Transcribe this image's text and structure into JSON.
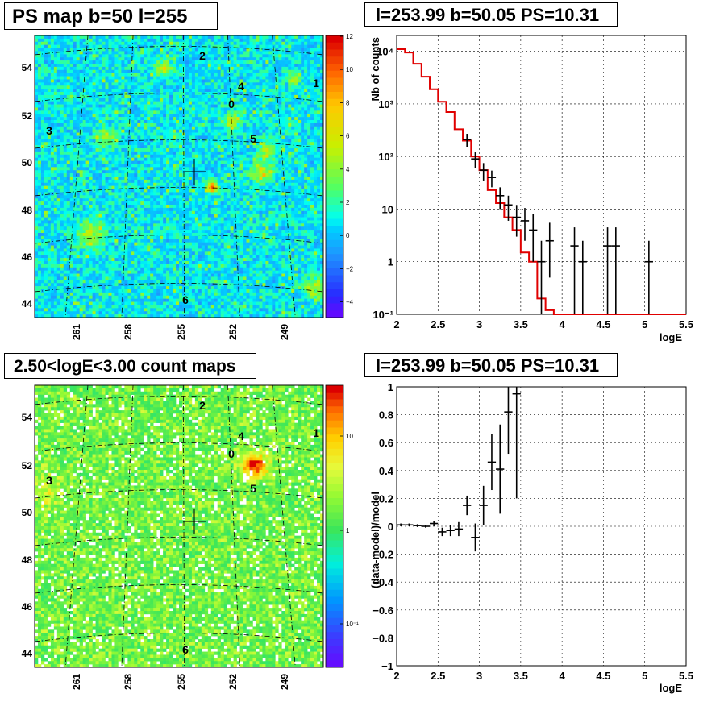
{
  "titles": {
    "tl": "PS map b=50 l=255",
    "tr": "l=253.99 b=50.05 PS=10.31",
    "bl": "2.50<logE<3.00 count maps",
    "br": "l=253.99 b=50.05 PS=10.31"
  },
  "colors": {
    "data": "#000000",
    "model": "#e00000",
    "grid": "#000000"
  },
  "chart_data": [
    {
      "panel": "ps-map",
      "type": "heatmap",
      "title": "PS map b=50 l=255",
      "x_ticks": [
        "261",
        "258",
        "255",
        "252",
        "249"
      ],
      "y_ticks": [
        "54",
        "52",
        "50",
        "48",
        "46",
        "44"
      ],
      "colorbar_ticks": [
        "12",
        "10",
        "8",
        "6",
        "4",
        "2",
        "0",
        "−2",
        "−4"
      ],
      "colorbar_range": [
        -5,
        12
      ],
      "source_labels": [
        "0",
        "1",
        "2",
        "3",
        "4",
        "5",
        "6"
      ],
      "center_marker": {
        "l": 253.99,
        "b": 50.05
      }
    },
    {
      "panel": "spectrum",
      "type": "line",
      "title": "l=253.99 b=50.05 PS=10.31",
      "xlabel": "logE",
      "ylabel": "Nb of counts",
      "xlim": [
        2,
        5.5
      ],
      "ylim": [
        0.1,
        20000
      ],
      "yscale": "log",
      "x_ticks": [
        "2",
        "2.5",
        "3",
        "3.5",
        "4",
        "4.5",
        "5",
        "5.5"
      ],
      "y_ticks": [
        "10⁴",
        "10³",
        "10²",
        "10",
        "1",
        "10⁻¹"
      ],
      "grid": true,
      "series": [
        {
          "kind": "data-points",
          "x": [
            2.85,
            2.95,
            3.05,
            3.15,
            3.25,
            3.35,
            3.45,
            3.55,
            3.65,
            3.75,
            3.85,
            4.15,
            4.25,
            4.55,
            4.65,
            5.05
          ],
          "y": [
            210,
            90,
            55,
            40,
            18,
            12,
            7,
            6,
            4,
            1,
            2.5,
            2,
            1,
            2,
            2,
            1
          ],
          "err_lo": [
            60,
            30,
            20,
            14,
            8,
            6,
            4,
            3.5,
            3,
            0.9,
            2,
            1.9,
            0.9,
            1.9,
            1.9,
            0.9
          ],
          "err_hi": [
            60,
            30,
            20,
            14,
            8,
            6,
            5,
            4.5,
            4,
            1.5,
            3,
            2.5,
            1.5,
            2.5,
            2.5,
            1.5
          ]
        },
        {
          "kind": "model-histogram",
          "edges": [
            2.0,
            2.1,
            2.2,
            2.3,
            2.4,
            2.5,
            2.6,
            2.7,
            2.8,
            2.9,
            3.0,
            3.1,
            3.2,
            3.3,
            3.4,
            3.5,
            3.6,
            3.7,
            3.8,
            3.9,
            4.0,
            5.5
          ],
          "values": [
            11000,
            9500,
            5800,
            3300,
            1900,
            1100,
            700,
            330,
            200,
            100,
            55,
            23,
            13,
            7,
            4,
            1.5,
            1,
            0.2,
            0.12,
            0.1,
            0.1
          ]
        }
      ]
    },
    {
      "panel": "count-map",
      "type": "heatmap",
      "title": "2.50<logE<3.00 count maps",
      "x_ticks": [
        "261",
        "258",
        "255",
        "252",
        "249"
      ],
      "y_ticks": [
        "54",
        "52",
        "50",
        "48",
        "46",
        "44"
      ],
      "colorbar_ticks": [
        "10",
        "1",
        "10⁻¹"
      ],
      "colorbar_scale": "log",
      "source_labels": [
        "0",
        "1",
        "2",
        "3",
        "4",
        "5",
        "6"
      ]
    },
    {
      "panel": "residuals",
      "type": "scatter",
      "title": "l=253.99 b=50.05 PS=10.31",
      "xlabel": "logE",
      "ylabel": "(data-model)/model",
      "xlim": [
        2,
        5.5
      ],
      "ylim": [
        -1,
        1
      ],
      "x_ticks": [
        "2",
        "2.5",
        "3",
        "3.5",
        "4",
        "4.5",
        "5",
        "5.5"
      ],
      "y_ticks": [
        "1",
        "0.8",
        "0.6",
        "0.4",
        "0.2",
        "0",
        "−0.2",
        "−0.4",
        "−0.6",
        "−0.8",
        "−1"
      ],
      "grid": true,
      "x": [
        2.05,
        2.15,
        2.25,
        2.35,
        2.45,
        2.55,
        2.65,
        2.75,
        2.85,
        2.95,
        3.05,
        3.15,
        3.25,
        3.35,
        3.45
      ],
      "y": [
        0.01,
        0.01,
        0.005,
        0.0,
        0.02,
        -0.04,
        -0.03,
        -0.02,
        0.15,
        -0.08,
        0.15,
        0.46,
        0.41,
        0.82,
        0.95
      ],
      "err": [
        0.01,
        0.01,
        0.01,
        0.01,
        0.02,
        0.03,
        0.04,
        0.05,
        0.07,
        0.1,
        0.14,
        0.2,
        0.32,
        0.3,
        0.75
      ]
    }
  ]
}
